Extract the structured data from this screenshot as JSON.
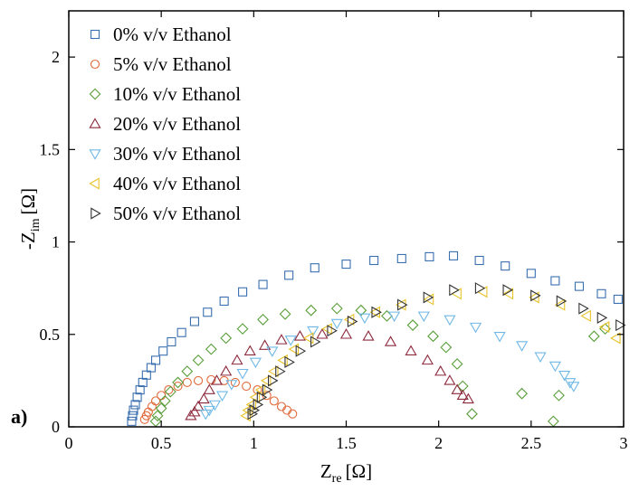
{
  "panel_label": "a)",
  "chart_data": {
    "type": "scatter",
    "xlabel": "Z",
    "xlabel_sub": "re",
    "xlabel_unit": "[Ω]",
    "ylabel_prefix": "-Z",
    "ylabel_sub": "im",
    "ylabel_unit": "[Ω]",
    "xlim": [
      0,
      3
    ],
    "ylim": [
      0,
      2.25
    ],
    "xticks": [
      0,
      0.5,
      1,
      1.5,
      2,
      2.5,
      3
    ],
    "xtick_labels": [
      "0",
      "0.5",
      "1",
      "1.5",
      "2",
      "2.5",
      "3"
    ],
    "yticks": [
      0,
      0.5,
      1,
      1.5,
      2
    ],
    "ytick_labels": [
      "0",
      "0.5",
      "1",
      "1.5",
      "2"
    ],
    "grid": false,
    "legend_position": "top-left",
    "series": [
      {
        "name": "0% v/v Ethanol",
        "marker": "square",
        "color": "#3a6fb0",
        "points": [
          [
            0.34,
            0.03
          ],
          [
            0.345,
            0.06
          ],
          [
            0.35,
            0.09
          ],
          [
            0.36,
            0.12
          ],
          [
            0.37,
            0.16
          ],
          [
            0.385,
            0.2
          ],
          [
            0.4,
            0.24
          ],
          [
            0.42,
            0.28
          ],
          [
            0.445,
            0.32
          ],
          [
            0.47,
            0.36
          ],
          [
            0.51,
            0.41
          ],
          [
            0.555,
            0.46
          ],
          [
            0.61,
            0.51
          ],
          [
            0.68,
            0.57
          ],
          [
            0.75,
            0.62
          ],
          [
            0.84,
            0.68
          ],
          [
            0.94,
            0.73
          ],
          [
            1.05,
            0.77
          ],
          [
            1.19,
            0.82
          ],
          [
            1.33,
            0.86
          ],
          [
            1.5,
            0.88
          ],
          [
            1.65,
            0.9
          ],
          [
            1.8,
            0.91
          ],
          [
            1.95,
            0.92
          ],
          [
            2.08,
            0.925
          ],
          [
            2.22,
            0.9
          ],
          [
            2.36,
            0.87
          ],
          [
            2.5,
            0.83
          ],
          [
            2.63,
            0.79
          ],
          [
            2.76,
            0.76
          ],
          [
            2.88,
            0.72
          ],
          [
            2.97,
            0.69
          ]
        ]
      },
      {
        "name": "5% v/v Ethanol",
        "marker": "circle",
        "color": "#e06a3a",
        "points": [
          [
            0.41,
            0.04
          ],
          [
            0.42,
            0.06
          ],
          [
            0.43,
            0.08
          ],
          [
            0.45,
            0.11
          ],
          [
            0.47,
            0.14
          ],
          [
            0.5,
            0.17
          ],
          [
            0.54,
            0.2
          ],
          [
            0.59,
            0.22
          ],
          [
            0.64,
            0.24
          ],
          [
            0.7,
            0.25
          ],
          [
            0.77,
            0.255
          ],
          [
            0.84,
            0.25
          ],
          [
            0.9,
            0.24
          ],
          [
            0.96,
            0.22
          ],
          [
            1.02,
            0.2
          ],
          [
            1.07,
            0.17
          ],
          [
            1.11,
            0.14
          ],
          [
            1.15,
            0.11
          ],
          [
            1.18,
            0.09
          ],
          [
            1.21,
            0.07
          ]
        ]
      },
      {
        "name": "10% v/v Ethanol",
        "marker": "diamond",
        "color": "#5a9e3a",
        "points": [
          [
            0.47,
            0.03
          ],
          [
            0.48,
            0.06
          ],
          [
            0.5,
            0.1
          ],
          [
            0.52,
            0.14
          ],
          [
            0.55,
            0.19
          ],
          [
            0.59,
            0.24
          ],
          [
            0.64,
            0.3
          ],
          [
            0.7,
            0.36
          ],
          [
            0.77,
            0.42
          ],
          [
            0.85,
            0.48
          ],
          [
            0.94,
            0.53
          ],
          [
            1.05,
            0.58
          ],
          [
            1.17,
            0.61
          ],
          [
            1.31,
            0.63
          ],
          [
            1.45,
            0.64
          ],
          [
            1.58,
            0.63
          ],
          [
            1.72,
            0.6
          ],
          [
            1.86,
            0.55
          ],
          [
            1.97,
            0.49
          ],
          [
            2.04,
            0.43
          ],
          [
            2.1,
            0.34
          ],
          [
            2.13,
            0.22
          ],
          [
            2.18,
            0.07
          ],
          [
            2.45,
            0.18
          ],
          [
            2.62,
            0.03
          ],
          [
            2.65,
            0.17
          ],
          [
            2.84,
            0.49
          ],
          [
            2.9,
            0.53
          ]
        ]
      },
      {
        "name": "20% v/v Ethanol",
        "marker": "triangle-up",
        "color": "#8c2a3c",
        "points": [
          [
            0.66,
            0.06
          ],
          [
            0.68,
            0.08
          ],
          [
            0.7,
            0.11
          ],
          [
            0.73,
            0.15
          ],
          [
            0.76,
            0.2
          ],
          [
            0.8,
            0.25
          ],
          [
            0.85,
            0.3
          ],
          [
            0.91,
            0.36
          ],
          [
            0.98,
            0.41
          ],
          [
            1.06,
            0.44
          ],
          [
            1.15,
            0.47
          ],
          [
            1.25,
            0.49
          ],
          [
            1.37,
            0.5
          ],
          [
            1.5,
            0.5
          ],
          [
            1.62,
            0.49
          ],
          [
            1.74,
            0.46
          ],
          [
            1.85,
            0.41
          ],
          [
            1.94,
            0.36
          ],
          [
            2.01,
            0.3
          ],
          [
            2.06,
            0.25
          ],
          [
            2.1,
            0.2
          ],
          [
            2.13,
            0.17
          ],
          [
            2.16,
            0.15
          ]
        ]
      },
      {
        "name": "30% v/v Ethanol",
        "marker": "triangle-down",
        "color": "#6fb8e6",
        "points": [
          [
            0.74,
            0.07
          ],
          [
            0.76,
            0.09
          ],
          [
            0.79,
            0.12
          ],
          [
            0.83,
            0.17
          ],
          [
            0.88,
            0.23
          ],
          [
            0.94,
            0.29
          ],
          [
            1.01,
            0.35
          ],
          [
            1.1,
            0.41
          ],
          [
            1.2,
            0.47
          ],
          [
            1.32,
            0.52
          ],
          [
            1.45,
            0.56
          ],
          [
            1.6,
            0.59
          ],
          [
            1.76,
            0.6
          ],
          [
            1.92,
            0.6
          ],
          [
            2.06,
            0.58
          ],
          [
            2.2,
            0.54
          ],
          [
            2.33,
            0.49
          ],
          [
            2.45,
            0.44
          ],
          [
            2.55,
            0.38
          ],
          [
            2.63,
            0.33
          ],
          [
            2.68,
            0.28
          ],
          [
            2.71,
            0.24
          ],
          [
            2.73,
            0.22
          ]
        ]
      },
      {
        "name": "40% v/v Ethanol",
        "marker": "triangle-left",
        "color": "#e8c22a",
        "points": [
          [
            0.96,
            0.06
          ],
          [
            0.97,
            0.09
          ],
          [
            0.99,
            0.12
          ],
          [
            1.01,
            0.16
          ],
          [
            1.04,
            0.2
          ],
          [
            1.07,
            0.25
          ],
          [
            1.11,
            0.3
          ],
          [
            1.16,
            0.36
          ],
          [
            1.22,
            0.42
          ],
          [
            1.3,
            0.48
          ],
          [
            1.4,
            0.53
          ],
          [
            1.52,
            0.58
          ],
          [
            1.66,
            0.62
          ],
          [
            1.8,
            0.66
          ],
          [
            1.95,
            0.69
          ],
          [
            2.1,
            0.72
          ],
          [
            2.24,
            0.73
          ],
          [
            2.38,
            0.72
          ],
          [
            2.52,
            0.7
          ],
          [
            2.66,
            0.66
          ],
          [
            2.8,
            0.6
          ],
          [
            2.9,
            0.54
          ],
          [
            2.96,
            0.48
          ]
        ]
      },
      {
        "name": "50% v/v Ethanol",
        "marker": "triangle-right",
        "color": "#333333",
        "points": [
          [
            0.99,
            0.07
          ],
          [
            1.0,
            0.09
          ],
          [
            1.02,
            0.12
          ],
          [
            1.04,
            0.16
          ],
          [
            1.07,
            0.2
          ],
          [
            1.1,
            0.25
          ],
          [
            1.14,
            0.3
          ],
          [
            1.19,
            0.35
          ],
          [
            1.25,
            0.41
          ],
          [
            1.33,
            0.46
          ],
          [
            1.42,
            0.52
          ],
          [
            1.53,
            0.57
          ],
          [
            1.66,
            0.62
          ],
          [
            1.8,
            0.66
          ],
          [
            1.94,
            0.7
          ],
          [
            2.08,
            0.74
          ],
          [
            2.22,
            0.75
          ],
          [
            2.37,
            0.74
          ],
          [
            2.52,
            0.71
          ],
          [
            2.66,
            0.68
          ],
          [
            2.78,
            0.64
          ],
          [
            2.88,
            0.59
          ],
          [
            2.98,
            0.55
          ]
        ]
      }
    ]
  }
}
